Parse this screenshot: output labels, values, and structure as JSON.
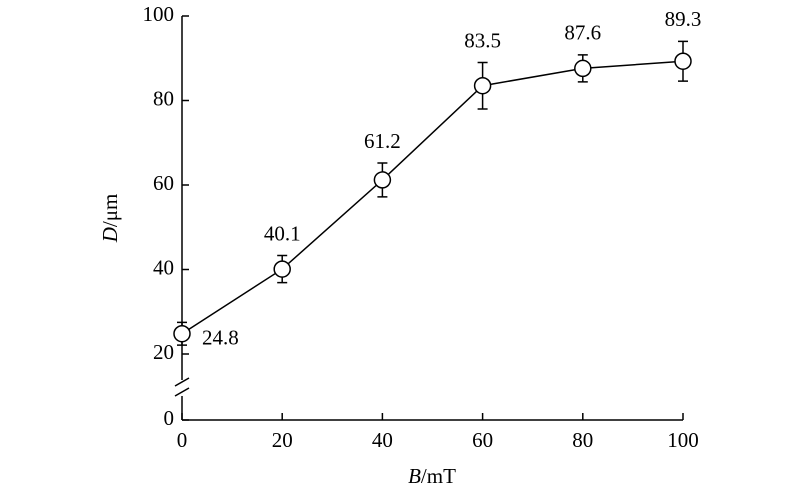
{
  "chart_data": {
    "type": "line",
    "xlabel": {
      "symbol": "B",
      "unit": "/mT"
    },
    "ylabel": {
      "symbol": "D",
      "unit": "/μm"
    },
    "x": [
      0,
      20,
      40,
      60,
      80,
      100
    ],
    "values": [
      24.8,
      40.1,
      61.2,
      83.5,
      87.6,
      89.3
    ],
    "errors": [
      2.7,
      3.2,
      4,
      5.5,
      3.2,
      4.7
    ],
    "color": "#000000",
    "xlim": [
      0,
      100
    ],
    "xticks": [
      0,
      20,
      40,
      60,
      80,
      100
    ],
    "ylim": [
      0,
      100
    ],
    "yticks": [
      0,
      20,
      40,
      60,
      80,
      100
    ],
    "axis_break": true,
    "grid": false
  }
}
